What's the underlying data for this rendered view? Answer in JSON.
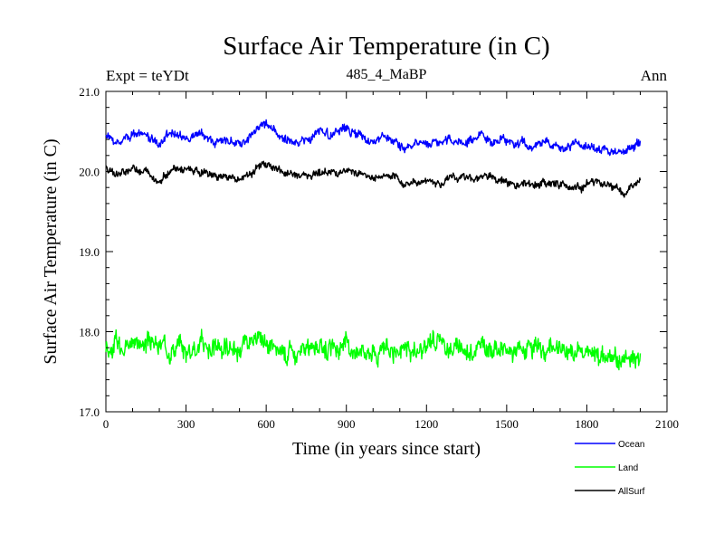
{
  "chart_data": {
    "type": "line",
    "title": "Surface Air Temperature (in C)",
    "subtitle": "485_4_MaBP",
    "experiment_label": "Expt = teYDt",
    "season_label": "Ann",
    "xlabel": "Time (in years since start)",
    "ylabel": "Surface Air Temperature (in C)",
    "xlim": [
      0,
      2100
    ],
    "ylim": [
      17.0,
      21.0
    ],
    "x_ticks": [
      0,
      300,
      600,
      900,
      1200,
      1500,
      1800,
      2100
    ],
    "x_tick_labels": [
      "0",
      "300",
      "600",
      "900",
      "1200",
      "1500",
      "1800",
      "2100"
    ],
    "y_ticks": [
      17,
      18,
      19,
      20,
      21
    ],
    "y_tick_labels": [
      "17.0",
      "18.0",
      "19.0",
      "20.0",
      "21.0"
    ],
    "grid": false,
    "legend_position": "bottom-right",
    "series": [
      {
        "name": "Ocean",
        "color": "#0000ff",
        "x": [
          0,
          50,
          100,
          150,
          200,
          250,
          300,
          350,
          400,
          450,
          500,
          550,
          600,
          650,
          700,
          750,
          800,
          850,
          900,
          950,
          1000,
          1050,
          1100,
          1150,
          1200,
          1250,
          1300,
          1350,
          1400,
          1450,
          1500,
          1550,
          1600,
          1650,
          1700,
          1750,
          1800,
          1850,
          1900,
          1950,
          2000
        ],
        "values": [
          20.45,
          20.35,
          20.5,
          20.45,
          20.35,
          20.5,
          20.4,
          20.5,
          20.35,
          20.4,
          20.3,
          20.5,
          20.6,
          20.45,
          20.35,
          20.4,
          20.5,
          20.45,
          20.5,
          20.45,
          20.35,
          20.45,
          20.3,
          20.3,
          20.35,
          20.4,
          20.4,
          20.35,
          20.45,
          20.35,
          20.4,
          20.35,
          20.3,
          20.35,
          20.3,
          20.3,
          20.3,
          20.3,
          20.25,
          20.25,
          20.35
        ]
      },
      {
        "name": "Land",
        "color": "#00ff00",
        "x": [
          0,
          50,
          100,
          150,
          200,
          250,
          300,
          350,
          400,
          450,
          500,
          550,
          600,
          650,
          700,
          750,
          800,
          850,
          900,
          950,
          1000,
          1050,
          1100,
          1150,
          1200,
          1250,
          1300,
          1350,
          1400,
          1450,
          1500,
          1550,
          1600,
          1650,
          1700,
          1750,
          1800,
          1850,
          1900,
          1950,
          2000
        ],
        "values": [
          17.8,
          17.85,
          17.9,
          17.85,
          17.8,
          17.85,
          17.75,
          17.85,
          17.8,
          17.8,
          17.75,
          17.8,
          17.85,
          17.8,
          17.8,
          17.75,
          17.8,
          17.85,
          17.8,
          17.8,
          17.8,
          17.75,
          17.8,
          17.75,
          17.8,
          17.85,
          17.8,
          17.75,
          17.8,
          17.8,
          17.75,
          17.8,
          17.75,
          17.75,
          17.75,
          17.7,
          17.75,
          17.7,
          17.7,
          17.65,
          17.65
        ]
      },
      {
        "name": "AllSurf",
        "color": "#000000",
        "x": [
          0,
          50,
          100,
          150,
          200,
          250,
          300,
          350,
          400,
          450,
          500,
          550,
          600,
          650,
          700,
          750,
          800,
          850,
          900,
          950,
          1000,
          1050,
          1100,
          1150,
          1200,
          1250,
          1300,
          1350,
          1400,
          1450,
          1500,
          1550,
          1600,
          1650,
          1700,
          1750,
          1800,
          1850,
          1900,
          1950,
          2000
        ],
        "values": [
          20.05,
          19.95,
          20.05,
          20.0,
          19.9,
          20.05,
          20.0,
          20.0,
          19.95,
          19.95,
          19.9,
          20.0,
          20.1,
          20.0,
          19.95,
          19.95,
          20.0,
          20.0,
          20.0,
          20.0,
          19.9,
          19.95,
          19.85,
          19.85,
          19.9,
          19.85,
          19.95,
          19.9,
          19.95,
          19.9,
          19.9,
          19.85,
          19.85,
          19.85,
          19.85,
          19.8,
          19.85,
          19.85,
          19.8,
          19.75,
          19.9
        ]
      }
    ]
  }
}
